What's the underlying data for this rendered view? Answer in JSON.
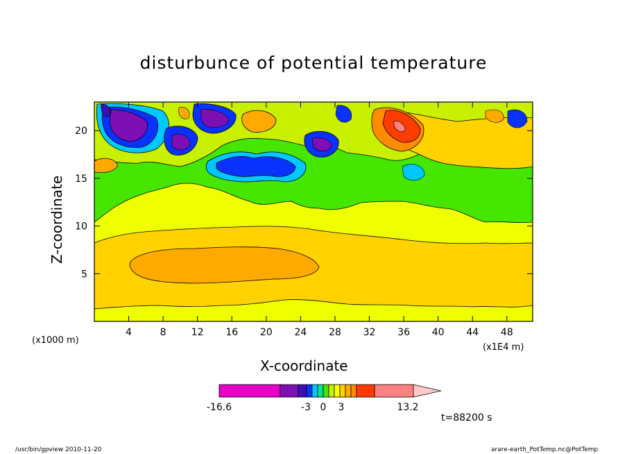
{
  "chart_data": {
    "type": "heatmap",
    "title": "disturbunce of potential temperature",
    "xlabel": "X-coordinate",
    "ylabel": "Z-coordinate",
    "x_unit_left": "(x1000 m)",
    "x_unit_right": "(x1E4 m)",
    "x_ticks": [
      "4",
      "8",
      "12",
      "16",
      "20",
      "24",
      "28",
      "32",
      "36",
      "40",
      "44",
      "48"
    ],
    "y_ticks": [
      "5",
      "10",
      "15",
      "20"
    ],
    "xlim": [
      0,
      51
    ],
    "ylim": [
      0,
      23
    ],
    "colorbar": {
      "labels": [
        "-16.6",
        "-3",
        "0",
        "3",
        "13.2"
      ],
      "colors": [
        "#e600c8",
        "#7d0fb4",
        "#3c0fb4",
        "#0a32ff",
        "#00c8ff",
        "#00e696",
        "#46e600",
        "#c8f000",
        "#ffff00",
        "#ffd200",
        "#ffaa00",
        "#ff8c00",
        "#ff3c00",
        "#ff8080",
        "#ffc8c8"
      ]
    },
    "time": "t=88200 s",
    "grid": false
  },
  "footer": {
    "left": "/usr/bin/gpview   2010-11-20",
    "right": "arare-earth_PotTemp.nc@PotTemp"
  }
}
